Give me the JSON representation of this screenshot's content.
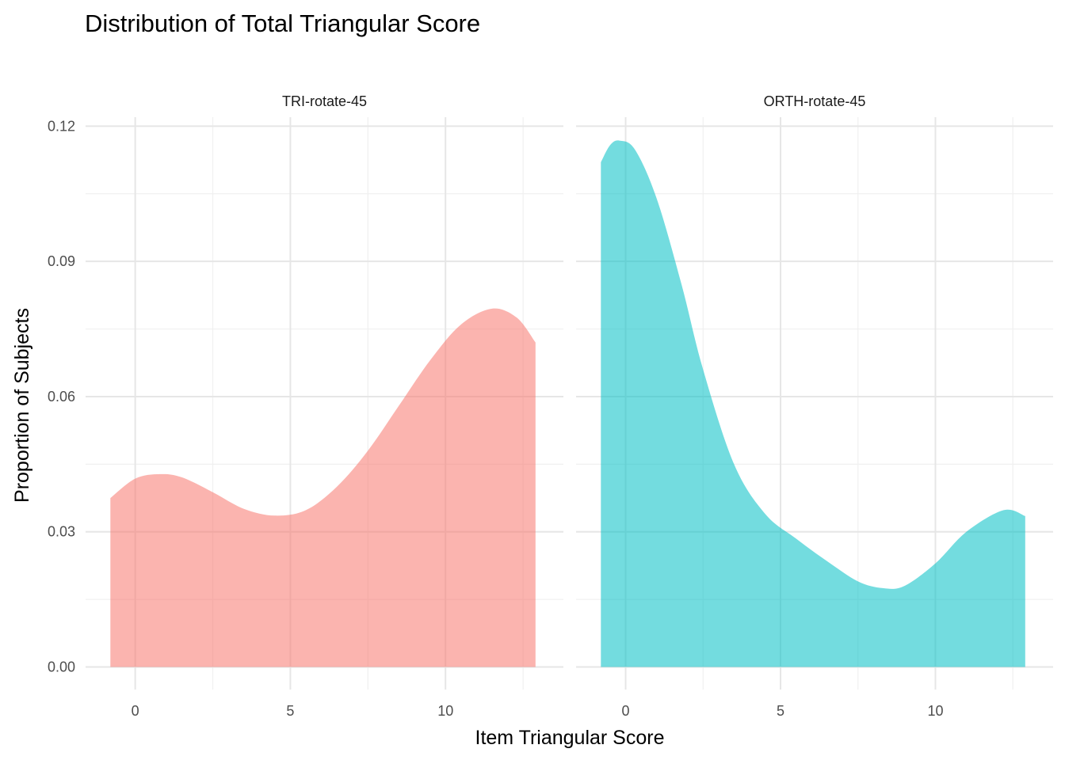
{
  "chart_data": {
    "type": "area",
    "title": "Distribution of Total Triangular Score",
    "xlabel": "Item Triangular Score",
    "ylabel": "Proportion of Subjects",
    "xlim": [
      -1.6,
      13.8
    ],
    "ylim": [
      -0.005,
      0.122
    ],
    "x_ticks": [
      0,
      5,
      10
    ],
    "x_tick_labels": [
      "0",
      "5",
      "10"
    ],
    "y_ticks": [
      0,
      0.03,
      0.06,
      0.09,
      0.12
    ],
    "y_tick_labels": [
      "0.00",
      "0.03",
      "0.06",
      "0.09",
      "0.12"
    ],
    "grid": true,
    "legend": "none",
    "panels": [
      {
        "label": "TRI-rotate-45",
        "color": "#F8766D",
        "x": [
          -0.8,
          0.0,
          0.8,
          1.5,
          2.5,
          3.5,
          4.5,
          5.5,
          6.5,
          7.5,
          8.5,
          9.5,
          10.5,
          11.5,
          12.3,
          12.9
        ],
        "y": [
          0.0375,
          0.0418,
          0.0428,
          0.0421,
          0.0388,
          0.0351,
          0.0336,
          0.0348,
          0.04,
          0.048,
          0.058,
          0.068,
          0.076,
          0.0795,
          0.0775,
          0.072
        ]
      },
      {
        "label": "ORTH-rotate-45",
        "color": "#00BFC4",
        "x": [
          -0.8,
          -0.5,
          -0.2,
          0.3,
          1.0,
          1.8,
          2.5,
          3.5,
          4.5,
          5.5,
          6.5,
          7.5,
          8.3,
          9.0,
          10.0,
          11.0,
          12.2,
          12.9
        ],
        "y": [
          0.112,
          0.1158,
          0.1168,
          0.1148,
          0.104,
          0.085,
          0.066,
          0.045,
          0.034,
          0.0285,
          0.0235,
          0.019,
          0.0175,
          0.018,
          0.023,
          0.03,
          0.0348,
          0.0335
        ]
      }
    ]
  }
}
